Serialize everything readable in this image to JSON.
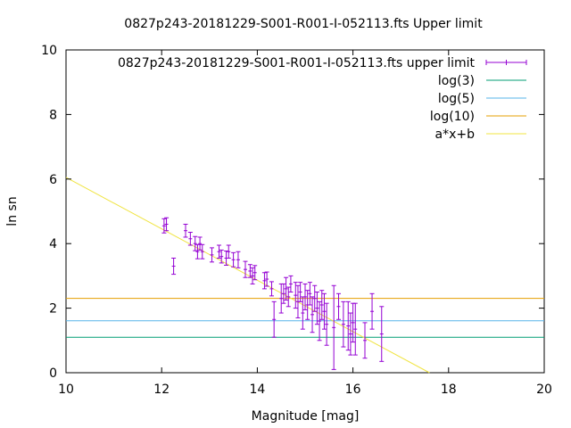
{
  "chart_data": {
    "type": "scatter",
    "title": "0827p243-20181229-S001-R001-I-052113.fts Upper limit",
    "xlabel": "Magnitude [mag]",
    "ylabel": "ln sn",
    "xlim": [
      10,
      20
    ],
    "ylim": [
      0,
      10
    ],
    "xticks": [
      "10",
      "12",
      "14",
      "16",
      "18",
      "20"
    ],
    "yticks": [
      "0",
      "2",
      "4",
      "6",
      "8",
      "10"
    ],
    "grid": false,
    "legend_position": "top-right",
    "series": [
      {
        "name": "0827p243-20181229-S001-R001-I-052113.fts upper limit",
        "kind": "errorbar",
        "color": "#9400d3",
        "points": [
          [
            12.05,
            4.55,
            0.22
          ],
          [
            12.1,
            4.6,
            0.2
          ],
          [
            12.25,
            3.3,
            0.25
          ],
          [
            12.5,
            4.4,
            0.2
          ],
          [
            12.6,
            4.15,
            0.2
          ],
          [
            12.7,
            4.0,
            0.22
          ],
          [
            12.75,
            3.75,
            0.22
          ],
          [
            12.8,
            4.0,
            0.2
          ],
          [
            12.85,
            3.75,
            0.22
          ],
          [
            13.05,
            3.65,
            0.22
          ],
          [
            13.2,
            3.75,
            0.2
          ],
          [
            13.25,
            3.6,
            0.2
          ],
          [
            13.35,
            3.55,
            0.22
          ],
          [
            13.4,
            3.75,
            0.2
          ],
          [
            13.5,
            3.5,
            0.22
          ],
          [
            13.6,
            3.5,
            0.25
          ],
          [
            13.75,
            3.2,
            0.25
          ],
          [
            13.85,
            3.15,
            0.2
          ],
          [
            13.9,
            3.0,
            0.25
          ],
          [
            13.95,
            3.1,
            0.22
          ],
          [
            14.15,
            2.85,
            0.25
          ],
          [
            14.2,
            2.9,
            0.22
          ],
          [
            14.3,
            2.6,
            0.22
          ],
          [
            14.35,
            1.65,
            0.55
          ],
          [
            14.5,
            2.3,
            0.45
          ],
          [
            14.55,
            2.45,
            0.3
          ],
          [
            14.6,
            2.6,
            0.35
          ],
          [
            14.65,
            2.35,
            0.3
          ],
          [
            14.7,
            2.75,
            0.25
          ],
          [
            14.8,
            2.4,
            0.4
          ],
          [
            14.85,
            2.2,
            0.5
          ],
          [
            14.9,
            2.5,
            0.3
          ],
          [
            14.95,
            1.85,
            0.5
          ],
          [
            15.0,
            2.35,
            0.4
          ],
          [
            15.05,
            2.1,
            0.45
          ],
          [
            15.1,
            2.45,
            0.35
          ],
          [
            15.15,
            1.8,
            0.55
          ],
          [
            15.2,
            2.3,
            0.4
          ],
          [
            15.25,
            2.0,
            0.5
          ],
          [
            15.3,
            1.6,
            0.6
          ],
          [
            15.35,
            2.1,
            0.45
          ],
          [
            15.4,
            1.9,
            0.55
          ],
          [
            15.45,
            1.5,
            0.65
          ],
          [
            15.6,
            1.4,
            1.3
          ],
          [
            15.7,
            2.05,
            0.4
          ],
          [
            15.8,
            1.5,
            0.7
          ],
          [
            15.9,
            1.45,
            0.75
          ],
          [
            15.95,
            1.2,
            0.65
          ],
          [
            16.0,
            1.55,
            0.6
          ],
          [
            16.05,
            1.35,
            0.8
          ],
          [
            16.25,
            1.0,
            0.55
          ],
          [
            16.4,
            1.9,
            0.55
          ],
          [
            16.6,
            1.2,
            0.85
          ]
        ]
      },
      {
        "name": "log(3)",
        "kind": "hline",
        "value": 1.0986,
        "color": "#009e73"
      },
      {
        "name": "log(5)",
        "kind": "hline",
        "value": 1.6094,
        "color": "#56b4e9"
      },
      {
        "name": "log(10)",
        "kind": "hline",
        "value": 2.3026,
        "color": "#e69f00"
      },
      {
        "name": "a*x+b",
        "kind": "line",
        "color": "#f0e442",
        "x": [
          10,
          17.6
        ],
        "y": [
          6.05,
          0
        ]
      }
    ]
  }
}
